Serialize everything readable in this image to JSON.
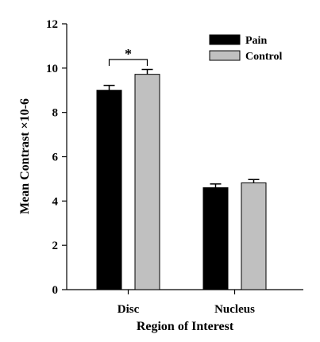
{
  "chart_data": {
    "type": "bar",
    "categories": [
      "Disc",
      "Nucleus"
    ],
    "series": [
      {
        "name": "Pain",
        "values": [
          9.0,
          4.6
        ],
        "errors": [
          0.22,
          0.17
        ],
        "color": "#000000"
      },
      {
        "name": "Control",
        "values": [
          9.72,
          4.82
        ],
        "errors": [
          0.22,
          0.15
        ],
        "color": "#c0c0c0"
      }
    ],
    "title": "",
    "xlabel": "Region of Interest",
    "ylabel": "Mean Contrast ×10-6",
    "ylim": [
      0,
      12
    ],
    "yticks": [
      0,
      2,
      4,
      6,
      8,
      10,
      12
    ],
    "grid": false,
    "legend_position": "top-right",
    "significance": {
      "category": "Disc",
      "label": "*"
    }
  }
}
